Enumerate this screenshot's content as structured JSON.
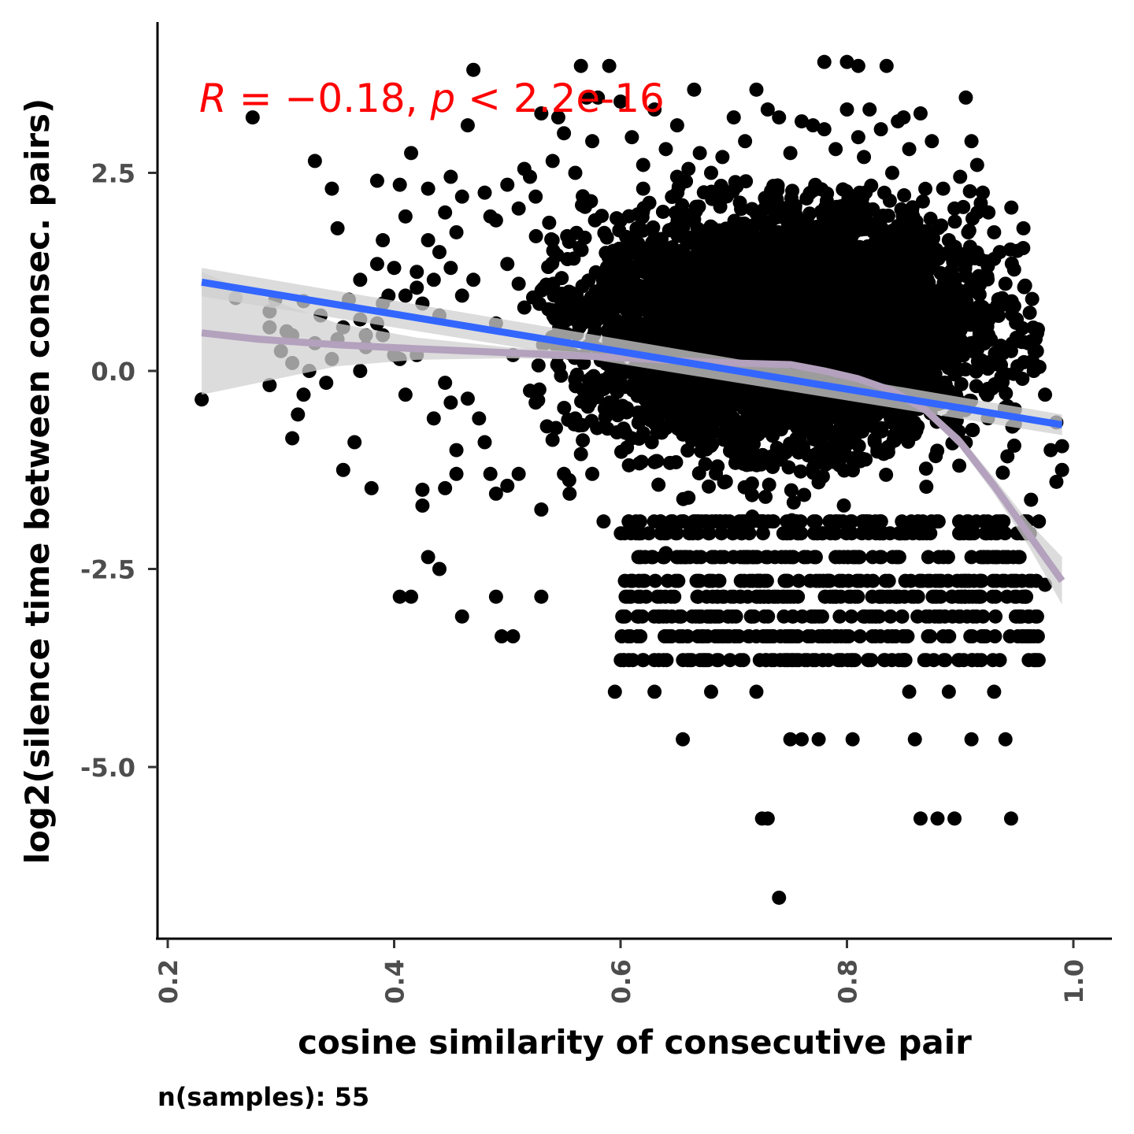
{
  "chart_data": {
    "type": "scatter",
    "xlabel": "cosine similarity of consecutive pair",
    "ylabel": "log2(silence time between consec. pairs)",
    "caption": "n(samples): 55",
    "annotation": {
      "R_symbol": "R",
      "R_text": " = −0.18, ",
      "p_symbol": "p",
      "p_text": " < 2.2e-16",
      "color": "#ff0000"
    },
    "xlim": [
      0.2,
      1.0
    ],
    "ylim": [
      -6.7,
      3.8
    ],
    "x_ticks": [
      {
        "value": 0.2,
        "label": "0.2"
      },
      {
        "value": 0.4,
        "label": "0.4"
      },
      {
        "value": 0.6,
        "label": "0.6"
      },
      {
        "value": 0.8,
        "label": "0.8"
      },
      {
        "value": 1.0,
        "label": "1.0"
      }
    ],
    "y_ticks": [
      {
        "value": 2.5,
        "label": "2.5"
      },
      {
        "value": 0.0,
        "label": "0.0"
      },
      {
        "value": -2.5,
        "label": "-2.5"
      },
      {
        "value": -5.0,
        "label": "-5.0"
      }
    ],
    "grid": false,
    "point_color": "#000000",
    "colors": {
      "linear_fit": "#3366ff",
      "loess_fit": "#b3a1bd",
      "band": "#d0d0d0"
    },
    "series": [
      {
        "type": "points",
        "points": [
          [
            0.23,
            -0.36
          ],
          [
            0.26,
            0.92
          ],
          [
            0.275,
            3.2
          ],
          [
            0.29,
            0.75
          ],
          [
            0.29,
            -0.18
          ],
          [
            0.31,
            0.1
          ],
          [
            0.31,
            0.45
          ],
          [
            0.32,
            0.88
          ],
          [
            0.33,
            2.65
          ],
          [
            0.345,
            2.3
          ],
          [
            0.35,
            1.8
          ],
          [
            0.355,
            0.55
          ],
          [
            0.355,
            -1.25
          ],
          [
            0.365,
            -0.9
          ],
          [
            0.37,
            1.15
          ],
          [
            0.37,
            0.0
          ],
          [
            0.375,
            0.45
          ],
          [
            0.38,
            -1.48
          ],
          [
            0.385,
            1.35
          ],
          [
            0.385,
            2.4
          ],
          [
            0.39,
            1.65
          ],
          [
            0.39,
            0.45
          ],
          [
            0.39,
            0.85
          ],
          [
            0.4,
            0.2
          ],
          [
            0.405,
            -2.85
          ],
          [
            0.405,
            0.15
          ],
          [
            0.41,
            -0.3
          ],
          [
            0.41,
            0.95
          ],
          [
            0.415,
            -2.85
          ],
          [
            0.42,
            0.2
          ],
          [
            0.42,
            1.05
          ],
          [
            0.425,
            -1.5
          ],
          [
            0.425,
            -1.7
          ],
          [
            0.43,
            2.3
          ],
          [
            0.43,
            -2.35
          ],
          [
            0.435,
            -0.6
          ],
          [
            0.44,
            0.7
          ],
          [
            0.44,
            -2.5
          ],
          [
            0.445,
            -0.15
          ],
          [
            0.445,
            -1.48
          ],
          [
            0.45,
            1.3
          ],
          [
            0.45,
            -0.4
          ],
          [
            0.455,
            -1.0
          ],
          [
            0.455,
            -1.3
          ],
          [
            0.46,
            -3.1
          ],
          [
            0.46,
            0.95
          ],
          [
            0.465,
            -0.35
          ],
          [
            0.47,
            1.15
          ],
          [
            0.475,
            -0.6
          ],
          [
            0.48,
            -0.9
          ],
          [
            0.485,
            -1.3
          ],
          [
            0.485,
            1.95
          ],
          [
            0.49,
            -1.55
          ],
          [
            0.49,
            0.6
          ],
          [
            0.49,
            -2.85
          ],
          [
            0.495,
            -3.35
          ],
          [
            0.5,
            1.35
          ],
          [
            0.5,
            -1.45
          ],
          [
            0.505,
            0.2
          ],
          [
            0.505,
            -3.35
          ],
          [
            0.51,
            -1.3
          ],
          [
            0.51,
            1.1
          ],
          [
            0.515,
            0.8
          ],
          [
            0.52,
            -0.25
          ],
          [
            0.52,
            2.45
          ],
          [
            0.525,
            -0.4
          ],
          [
            0.53,
            -2.85
          ],
          [
            0.53,
            -1.75
          ],
          [
            0.535,
            -0.7
          ],
          [
            0.54,
            1.65
          ],
          [
            0.545,
            0.4
          ],
          [
            0.55,
            -1.3
          ],
          [
            0.555,
            -1.55
          ],
          [
            0.56,
            -0.6
          ],
          [
            0.565,
            -1.05
          ],
          [
            0.57,
            3.45
          ],
          [
            0.575,
            -1.3
          ],
          [
            0.58,
            1.0
          ],
          [
            0.585,
            -1.9
          ],
          [
            0.59,
            -0.4
          ],
          [
            0.595,
            -4.05
          ],
          [
            0.6,
            1.9
          ],
          [
            0.61,
            -0.85
          ],
          [
            0.62,
            2.3
          ],
          [
            0.625,
            -2.05
          ],
          [
            0.63,
            -4.05
          ],
          [
            0.635,
            1.6
          ],
          [
            0.64,
            -2.3
          ],
          [
            0.65,
            2.45
          ],
          [
            0.655,
            -4.65
          ],
          [
            0.66,
            -1.6
          ],
          [
            0.665,
            3.55
          ],
          [
            0.67,
            -2.65
          ],
          [
            0.68,
            -4.05
          ],
          [
            0.69,
            2.3
          ],
          [
            0.695,
            -3.1
          ],
          [
            0.7,
            -2.85
          ],
          [
            0.705,
            -1.9
          ],
          [
            0.71,
            -0.8
          ],
          [
            0.72,
            -4.05
          ],
          [
            0.725,
            -5.65
          ],
          [
            0.73,
            -5.65
          ],
          [
            0.735,
            -3.35
          ],
          [
            0.74,
            -6.65
          ],
          [
            0.745,
            -2.65
          ],
          [
            0.75,
            -4.65
          ],
          [
            0.76,
            -4.65
          ],
          [
            0.765,
            -3.65
          ],
          [
            0.77,
            -3.65
          ],
          [
            0.775,
            -4.65
          ],
          [
            0.78,
            3.9
          ],
          [
            0.79,
            -2.35
          ],
          [
            0.8,
            3.9
          ],
          [
            0.805,
            -4.65
          ],
          [
            0.81,
            3.85
          ],
          [
            0.815,
            2.7
          ],
          [
            0.82,
            -3.1
          ],
          [
            0.83,
            -1.9
          ],
          [
            0.835,
            3.85
          ],
          [
            0.84,
            -3.35
          ],
          [
            0.85,
            3.2
          ],
          [
            0.855,
            -4.05
          ],
          [
            0.86,
            -4.65
          ],
          [
            0.865,
            -5.65
          ],
          [
            0.87,
            -3.1
          ],
          [
            0.88,
            -5.65
          ],
          [
            0.885,
            -3.35
          ],
          [
            0.89,
            -4.05
          ],
          [
            0.895,
            -5.65
          ],
          [
            0.9,
            -3.1
          ],
          [
            0.905,
            3.45
          ],
          [
            0.91,
            -4.65
          ],
          [
            0.92,
            -3.35
          ],
          [
            0.925,
            -2.35
          ],
          [
            0.93,
            -4.05
          ],
          [
            0.935,
            -3.65
          ],
          [
            0.94,
            -4.65
          ],
          [
            0.945,
            -5.65
          ],
          [
            0.95,
            -3.1
          ],
          [
            0.955,
            -2.85
          ],
          [
            0.96,
            -3.35
          ],
          [
            0.965,
            -3.65
          ],
          [
            0.97,
            0.05
          ],
          [
            0.975,
            -2.7
          ],
          [
            0.98,
            -1.0
          ],
          [
            0.985,
            -1.4
          ],
          [
            0.99,
            -1.25
          ],
          [
            0.99,
            -0.95
          ],
          [
            0.985,
            -0.65
          ],
          [
            0.975,
            -0.3
          ],
          [
            0.965,
            0.0
          ],
          [
            0.96,
            0.35
          ],
          [
            0.955,
            -0.1
          ],
          [
            0.95,
            0.65
          ],
          [
            0.945,
            0.25
          ],
          [
            0.94,
            1.1
          ],
          [
            0.935,
            1.5
          ],
          [
            0.93,
            1.75
          ],
          [
            0.925,
            2.0
          ],
          [
            0.92,
            2.25
          ],
          [
            0.915,
            2.6
          ],
          [
            0.91,
            2.9
          ],
          [
            0.905,
            1.2
          ],
          [
            0.9,
            2.45
          ],
          [
            0.895,
            2.05
          ],
          [
            0.89,
            1.65
          ],
          [
            0.885,
            2.3
          ],
          [
            0.875,
            2.9
          ],
          [
            0.865,
            3.25
          ],
          [
            0.855,
            2.8
          ],
          [
            0.845,
            3.15
          ],
          [
            0.84,
            2.5
          ],
          [
            0.83,
            3.05
          ],
          [
            0.82,
            3.3
          ],
          [
            0.81,
            2.95
          ],
          [
            0.8,
            3.3
          ],
          [
            0.79,
            2.8
          ],
          [
            0.78,
            3.05
          ],
          [
            0.77,
            3.1
          ],
          [
            0.76,
            3.15
          ],
          [
            0.75,
            2.75
          ],
          [
            0.74,
            3.2
          ],
          [
            0.73,
            3.3
          ],
          [
            0.72,
            3.55
          ],
          [
            0.71,
            2.9
          ],
          [
            0.7,
            3.2
          ],
          [
            0.69,
            2.7
          ],
          [
            0.68,
            2.5
          ],
          [
            0.67,
            2.75
          ],
          [
            0.66,
            2.55
          ],
          [
            0.65,
            3.1
          ],
          [
            0.64,
            2.8
          ],
          [
            0.63,
            3.3
          ],
          [
            0.62,
            2.6
          ],
          [
            0.61,
            2.95
          ],
          [
            0.6,
            3.4
          ],
          [
            0.59,
            3.85
          ],
          [
            0.58,
            3.45
          ],
          [
            0.575,
            2.9
          ],
          [
            0.565,
            3.85
          ],
          [
            0.56,
            2.5
          ],
          [
            0.55,
            3.0
          ],
          [
            0.545,
            3.2
          ],
          [
            0.54,
            2.65
          ],
          [
            0.53,
            3.25
          ],
          [
            0.525,
            2.2
          ],
          [
            0.515,
            2.55
          ],
          [
            0.51,
            2.05
          ],
          [
            0.5,
            2.35
          ],
          [
            0.49,
            1.9
          ],
          [
            0.48,
            2.25
          ],
          [
            0.47,
            3.8
          ],
          [
            0.465,
            3.1
          ],
          [
            0.46,
            2.2
          ],
          [
            0.455,
            1.75
          ],
          [
            0.45,
            2.45
          ],
          [
            0.445,
            2.0
          ],
          [
            0.44,
            1.5
          ],
          [
            0.435,
            1.15
          ],
          [
            0.43,
            1.65
          ],
          [
            0.425,
            0.85
          ],
          [
            0.42,
            1.25
          ],
          [
            0.415,
            2.75
          ],
          [
            0.41,
            1.95
          ],
          [
            0.405,
            2.35
          ],
          [
            0.4,
            1.3
          ],
          [
            0.395,
            0.95
          ],
          [
            0.385,
            0.6
          ],
          [
            0.375,
            0.3
          ],
          [
            0.37,
            0.65
          ],
          [
            0.36,
            0.9
          ],
          [
            0.35,
            0.4
          ],
          [
            0.345,
            0.15
          ],
          [
            0.34,
            -0.15
          ],
          [
            0.335,
            0.7
          ],
          [
            0.33,
            0.35
          ],
          [
            0.325,
            0.0
          ],
          [
            0.32,
            -0.3
          ],
          [
            0.315,
            -0.55
          ],
          [
            0.31,
            -0.85
          ],
          [
            0.305,
            0.5
          ],
          [
            0.3,
            0.25
          ],
          [
            0.295,
            0.9
          ],
          [
            0.29,
            0.55
          ]
        ]
      },
      {
        "type": "linear_fit",
        "name": "",
        "points": [
          [
            0.23,
            1.12
          ],
          [
            0.99,
            -0.68
          ]
        ],
        "band_upper": [
          [
            0.23,
            1.3
          ],
          [
            0.99,
            -0.55
          ]
        ],
        "band_lower": [
          [
            0.23,
            0.94
          ],
          [
            0.99,
            -0.81
          ]
        ]
      },
      {
        "type": "loess_fit",
        "name": "",
        "points": [
          [
            0.23,
            0.48
          ],
          [
            0.28,
            0.4
          ],
          [
            0.35,
            0.33
          ],
          [
            0.42,
            0.28
          ],
          [
            0.5,
            0.23
          ],
          [
            0.58,
            0.18
          ],
          [
            0.65,
            0.13
          ],
          [
            0.7,
            0.1
          ],
          [
            0.75,
            0.08
          ],
          [
            0.78,
            0.0
          ],
          [
            0.81,
            -0.1
          ],
          [
            0.84,
            -0.25
          ],
          [
            0.87,
            -0.5
          ],
          [
            0.9,
            -0.9
          ],
          [
            0.93,
            -1.45
          ],
          [
            0.96,
            -2.05
          ],
          [
            0.99,
            -2.65
          ]
        ],
        "band_upper": [
          [
            0.23,
            1.25
          ],
          [
            0.28,
            0.95
          ],
          [
            0.35,
            0.6
          ],
          [
            0.42,
            0.42
          ],
          [
            0.5,
            0.3
          ],
          [
            0.58,
            0.22
          ],
          [
            0.65,
            0.16
          ],
          [
            0.7,
            0.13
          ],
          [
            0.75,
            0.11
          ],
          [
            0.78,
            0.03
          ],
          [
            0.81,
            -0.07
          ],
          [
            0.84,
            -0.21
          ],
          [
            0.87,
            -0.45
          ],
          [
            0.9,
            -0.83
          ],
          [
            0.93,
            -1.35
          ],
          [
            0.96,
            -1.9
          ],
          [
            0.99,
            -2.35
          ]
        ],
        "band_lower": [
          [
            0.23,
            -0.3
          ],
          [
            0.28,
            -0.15
          ],
          [
            0.35,
            0.06
          ],
          [
            0.42,
            0.14
          ],
          [
            0.5,
            0.16
          ],
          [
            0.58,
            0.14
          ],
          [
            0.65,
            0.1
          ],
          [
            0.7,
            0.07
          ],
          [
            0.75,
            0.05
          ],
          [
            0.78,
            -0.03
          ],
          [
            0.81,
            -0.13
          ],
          [
            0.84,
            -0.29
          ],
          [
            0.87,
            -0.55
          ],
          [
            0.9,
            -0.97
          ],
          [
            0.93,
            -1.55
          ],
          [
            0.96,
            -2.2
          ],
          [
            0.99,
            -2.95
          ]
        ]
      }
    ]
  }
}
